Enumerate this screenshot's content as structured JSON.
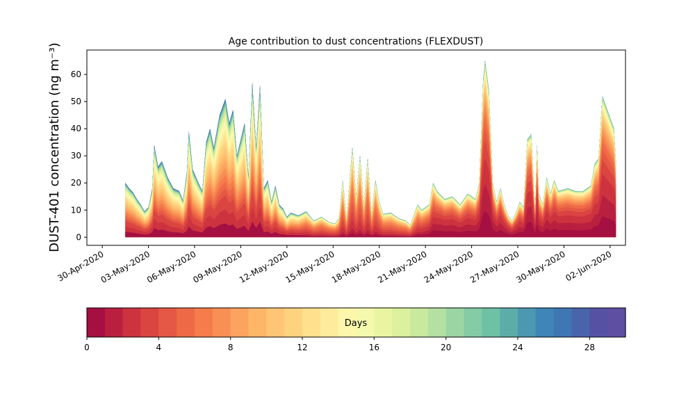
{
  "chart_data": {
    "type": "area",
    "stacked": true,
    "title": "Age contribution to dust concentrations (FLEXDUST)",
    "ylabel": "DUST-401 concentration (ng m⁻³)",
    "xlabel": "",
    "x_start": "2020-04-30",
    "x_end": "2020-06-03",
    "xlim": [
      "2020-04-29",
      "2020-06-03"
    ],
    "ylim": [
      -3,
      69
    ],
    "yticks": [
      0,
      10,
      20,
      30,
      40,
      50,
      60
    ],
    "xticks": [
      {
        "date": "2020-04-30",
        "label": "30-Apr-2020"
      },
      {
        "date": "2020-05-03",
        "label": "03-May-2020"
      },
      {
        "date": "2020-05-06",
        "label": "06-May-2020"
      },
      {
        "date": "2020-05-09",
        "label": "09-May-2020"
      },
      {
        "date": "2020-05-12",
        "label": "12-May-2020"
      },
      {
        "date": "2020-05-15",
        "label": "15-May-2020"
      },
      {
        "date": "2020-05-18",
        "label": "18-May-2020"
      },
      {
        "date": "2020-05-21",
        "label": "21-May-2020"
      },
      {
        "date": "2020-05-24",
        "label": "24-May-2020"
      },
      {
        "date": "2020-05-27",
        "label": "27-May-2020"
      },
      {
        "date": "2020-05-30",
        "label": "30-May-2020"
      },
      {
        "date": "2020-06-02",
        "label": "02-Jun-2020"
      }
    ],
    "total": [
      [
        "2020-05-01 12:00",
        20
      ],
      [
        "2020-05-01 18:00",
        18
      ],
      [
        "2020-05-02 00:00",
        16.5
      ],
      [
        "2020-05-02 06:00",
        14
      ],
      [
        "2020-05-02 12:00",
        12
      ],
      [
        "2020-05-02 18:00",
        9.5
      ],
      [
        "2020-05-03 00:00",
        11
      ],
      [
        "2020-05-03 06:00",
        18
      ],
      [
        "2020-05-03 09:00",
        34
      ],
      [
        "2020-05-03 15:00",
        26
      ],
      [
        "2020-05-03 21:00",
        28
      ],
      [
        "2020-05-04 06:00",
        22
      ],
      [
        "2020-05-04 15:00",
        18
      ],
      [
        "2020-05-05 00:00",
        17
      ],
      [
        "2020-05-05 06:00",
        13.5
      ],
      [
        "2020-05-05 12:00",
        24
      ],
      [
        "2020-05-05 15:00",
        39
      ],
      [
        "2020-05-05 21:00",
        25
      ],
      [
        "2020-05-06 06:00",
        20
      ],
      [
        "2020-05-06 12:00",
        17
      ],
      [
        "2020-05-06 18:00",
        35
      ],
      [
        "2020-05-07 00:00",
        40
      ],
      [
        "2020-05-07 06:00",
        33
      ],
      [
        "2020-05-07 15:00",
        45
      ],
      [
        "2020-05-08 00:00",
        51
      ],
      [
        "2020-05-08 06:00",
        42
      ],
      [
        "2020-05-08 12:00",
        47
      ],
      [
        "2020-05-08 18:00",
        30
      ],
      [
        "2020-05-09 06:00",
        42
      ],
      [
        "2020-05-09 12:00",
        22
      ],
      [
        "2020-05-09 18:00",
        57
      ],
      [
        "2020-05-10 00:00",
        33
      ],
      [
        "2020-05-10 06:00",
        56
      ],
      [
        "2020-05-10 12:00",
        18
      ],
      [
        "2020-05-10 18:00",
        21
      ],
      [
        "2020-05-11 00:00",
        13
      ],
      [
        "2020-05-11 06:00",
        19
      ],
      [
        "2020-05-11 12:00",
        12
      ],
      [
        "2020-05-11 18:00",
        10.5
      ],
      [
        "2020-05-12 00:00",
        7.5
      ],
      [
        "2020-05-12 06:00",
        9
      ],
      [
        "2020-05-12 18:00",
        8
      ],
      [
        "2020-05-13 06:00",
        9.5
      ],
      [
        "2020-05-13 18:00",
        6
      ],
      [
        "2020-05-14 06:00",
        7.5
      ],
      [
        "2020-05-14 18:00",
        5.5
      ],
      [
        "2020-05-15 03:00",
        5
      ],
      [
        "2020-05-15 09:00",
        7
      ],
      [
        "2020-05-15 15:00",
        21
      ],
      [
        "2020-05-15 21:00",
        7
      ],
      [
        "2020-05-16 06:00",
        33
      ],
      [
        "2020-05-16 12:00",
        15
      ],
      [
        "2020-05-16 18:00",
        30
      ],
      [
        "2020-05-17 00:00",
        12
      ],
      [
        "2020-05-17 06:00",
        29
      ],
      [
        "2020-05-17 12:00",
        9
      ],
      [
        "2020-05-17 18:00",
        21
      ],
      [
        "2020-05-18 00:00",
        13
      ],
      [
        "2020-05-18 06:00",
        8.5
      ],
      [
        "2020-05-18 18:00",
        9
      ],
      [
        "2020-05-19 06:00",
        7
      ],
      [
        "2020-05-19 18:00",
        6
      ],
      [
        "2020-05-20 00:00",
        4.5
      ],
      [
        "2020-05-20 12:00",
        12
      ],
      [
        "2020-05-20 18:00",
        10
      ],
      [
        "2020-05-21 06:00",
        12
      ],
      [
        "2020-05-21 12:00",
        20
      ],
      [
        "2020-05-21 18:00",
        17
      ],
      [
        "2020-05-22 06:00",
        14
      ],
      [
        "2020-05-22 18:00",
        15
      ],
      [
        "2020-05-23 06:00",
        12
      ],
      [
        "2020-05-23 18:00",
        16
      ],
      [
        "2020-05-24 06:00",
        14
      ],
      [
        "2020-05-24 12:00",
        20
      ],
      [
        "2020-05-24 18:00",
        58
      ],
      [
        "2020-05-24 21:00",
        65
      ],
      [
        "2020-05-25 03:00",
        54
      ],
      [
        "2020-05-25 09:00",
        20
      ],
      [
        "2020-05-25 15:00",
        13
      ],
      [
        "2020-05-25 21:00",
        18
      ],
      [
        "2020-05-26 03:00",
        12
      ],
      [
        "2020-05-26 09:00",
        8
      ],
      [
        "2020-05-26 15:00",
        6
      ],
      [
        "2020-05-26 21:00",
        9
      ],
      [
        "2020-05-27 03:00",
        13
      ],
      [
        "2020-05-27 09:00",
        11
      ],
      [
        "2020-05-27 15:00",
        36
      ],
      [
        "2020-05-27 21:00",
        38
      ],
      [
        "2020-05-28 03:00",
        10
      ],
      [
        "2020-05-28 06:00",
        34
      ],
      [
        "2020-05-28 09:00",
        16
      ],
      [
        "2020-05-28 15:00",
        12
      ],
      [
        "2020-05-28 21:00",
        22
      ],
      [
        "2020-05-29 03:00",
        16
      ],
      [
        "2020-05-29 09:00",
        21
      ],
      [
        "2020-05-29 15:00",
        17
      ],
      [
        "2020-05-30 06:00",
        18
      ],
      [
        "2020-05-30 18:00",
        17
      ],
      [
        "2020-05-31 06:00",
        17
      ],
      [
        "2020-05-31 18:00",
        19
      ],
      [
        "2020-06-01 00:00",
        27
      ],
      [
        "2020-06-01 06:00",
        29
      ],
      [
        "2020-06-01 12:00",
        52
      ],
      [
        "2020-06-01 18:00",
        48
      ],
      [
        "2020-06-02 00:00",
        44
      ],
      [
        "2020-06-02 06:00",
        40
      ],
      [
        "2020-06-02 09:00",
        28
      ]
    ],
    "age_fractions": {
      "early_may": [
        0.1,
        0.1,
        0.2,
        0.3,
        0.35,
        0.4,
        0.45,
        0.5,
        0.55,
        0.6,
        0.65,
        0.7,
        0.74,
        0.78,
        0.82,
        0.85,
        0.88,
        0.9,
        0.92,
        0.94,
        0.95,
        0.96,
        0.97,
        0.98,
        0.985,
        0.99,
        0.995,
        1.0,
        1.0,
        1.0
      ],
      "mid_may": [
        0.05,
        0.1,
        0.2,
        0.3,
        0.4,
        0.5,
        0.58,
        0.65,
        0.7,
        0.75,
        0.8,
        0.84,
        0.87,
        0.9,
        0.92,
        0.94,
        0.95,
        0.96,
        0.97,
        0.98,
        0.985,
        0.99,
        0.995,
        1.0,
        1.0,
        1.0,
        1.0,
        1.0,
        1.0,
        1.0
      ],
      "late_may": [
        0.15,
        0.3,
        0.45,
        0.55,
        0.62,
        0.68,
        0.72,
        0.76,
        0.8,
        0.83,
        0.86,
        0.88,
        0.9,
        0.92,
        0.94,
        0.95,
        0.96,
        0.97,
        0.98,
        0.985,
        0.99,
        0.995,
        1.0,
        1.0,
        1.0,
        1.0,
        1.0,
        1.0,
        1.0,
        1.0
      ]
    },
    "colorbar": {
      "label": "Days",
      "min": 0,
      "max": 30,
      "ticks": [
        0,
        4,
        8,
        12,
        16,
        20,
        24,
        28
      ],
      "colors": [
        "#a50f41",
        "#b9203f",
        "#cc333f",
        "#da4441",
        "#e55845",
        "#ee6a47",
        "#f57c4b",
        "#f88f55",
        "#fba35f",
        "#fdb668",
        "#fec574",
        "#fed380",
        "#fee08d",
        "#feec9c",
        "#fdf6ab",
        "#f4f9ae",
        "#e9f5a1",
        "#dcf09d",
        "#c9e99e",
        "#b4e0a2",
        "#9cd5a4",
        "#85cba5",
        "#6ec1a5",
        "#5cadaa",
        "#4b98b0",
        "#3f85b7",
        "#3f76b4",
        "#4964ab",
        "#5552a4",
        "#5e4fa2"
      ]
    }
  }
}
